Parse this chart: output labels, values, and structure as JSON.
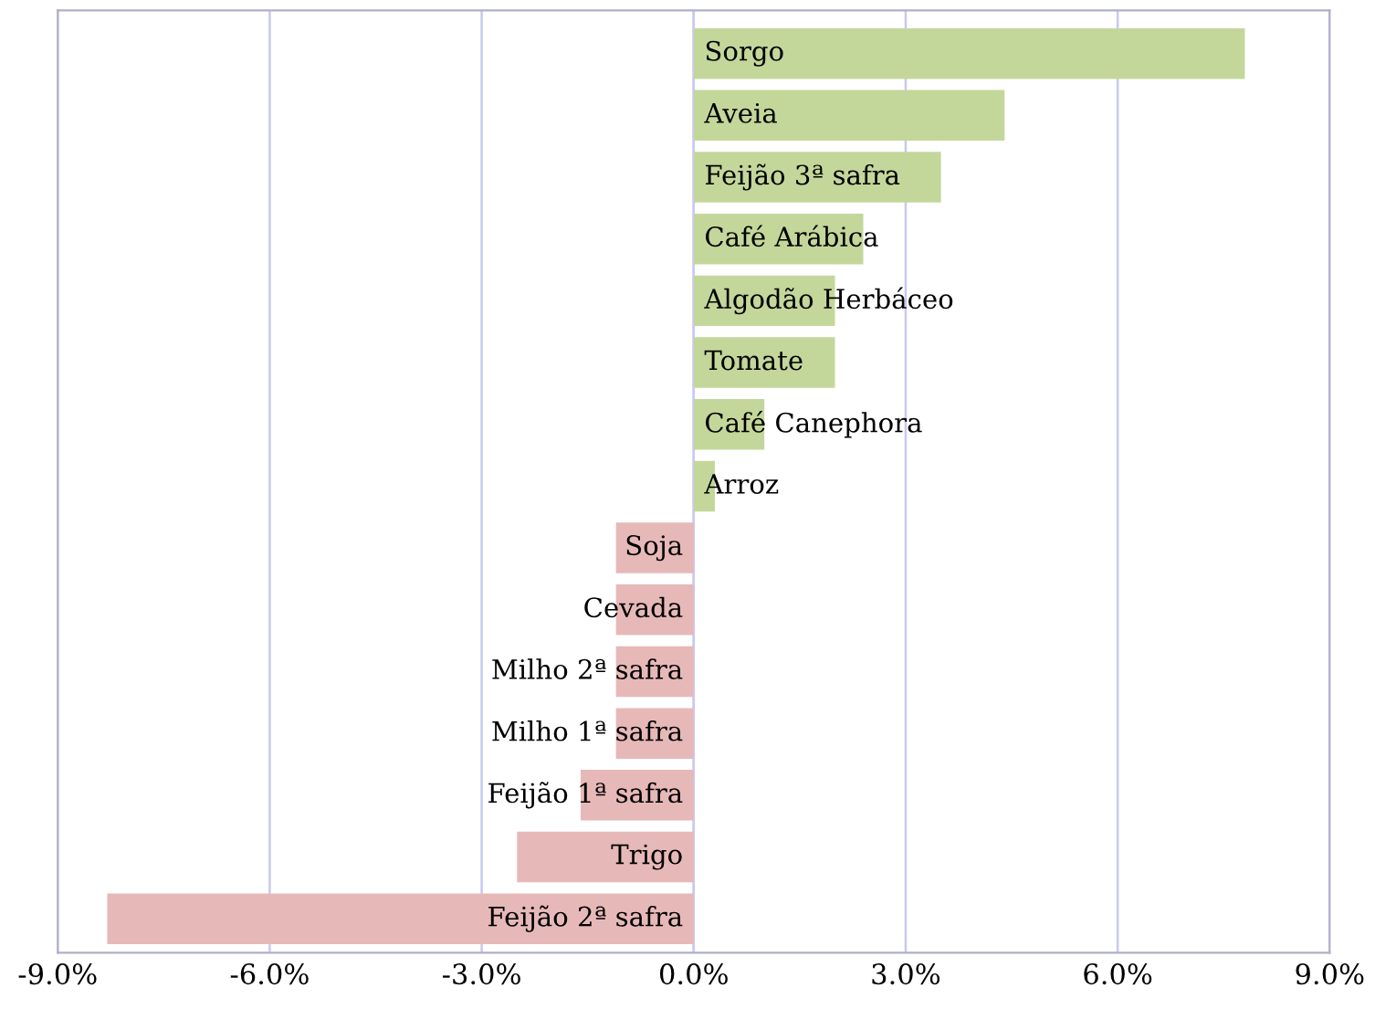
{
  "chart_data": {
    "type": "bar",
    "orientation": "horizontal",
    "categories": [
      "Sorgo",
      "Aveia",
      "Feijão 3ª safra",
      "Café Arábica",
      "Algodão Herbáceo",
      "Tomate",
      "Café Canephora",
      "Arroz",
      "Soja",
      "Cevada",
      "Milho 2ª safra",
      "Milho 1ª safra",
      "Feijão 1ª safra",
      "Trigo",
      "Feijão 2ª safra"
    ],
    "values": [
      7.8,
      4.4,
      3.5,
      2.4,
      2.0,
      2.0,
      1.0,
      0.3,
      -1.1,
      -1.1,
      -1.1,
      -1.1,
      -1.6,
      -2.5,
      -8.3
    ],
    "colors": [
      "#c4d79b",
      "#c4d79b",
      "#c4d79b",
      "#c4d79b",
      "#c4d79b",
      "#c4d79b",
      "#c4d79b",
      "#c4d79b",
      "#e6b9b8",
      "#e6b9b8",
      "#e6b9b8",
      "#e6b9b8",
      "#e6b9b8",
      "#e6b9b8",
      "#e6b9b8"
    ],
    "xlim": [
      -9,
      9
    ],
    "xticks": [
      {
        "value": -9,
        "label": "-9.0%"
      },
      {
        "value": -6,
        "label": "-6.0%"
      },
      {
        "value": -3,
        "label": "-3.0%"
      },
      {
        "value": 0,
        "label": "0.0%"
      },
      {
        "value": 3,
        "label": "3.0%"
      },
      {
        "value": 6,
        "label": "6.0%"
      },
      {
        "value": 9,
        "label": "9.0%"
      }
    ],
    "grid": "x",
    "legend": false
  }
}
